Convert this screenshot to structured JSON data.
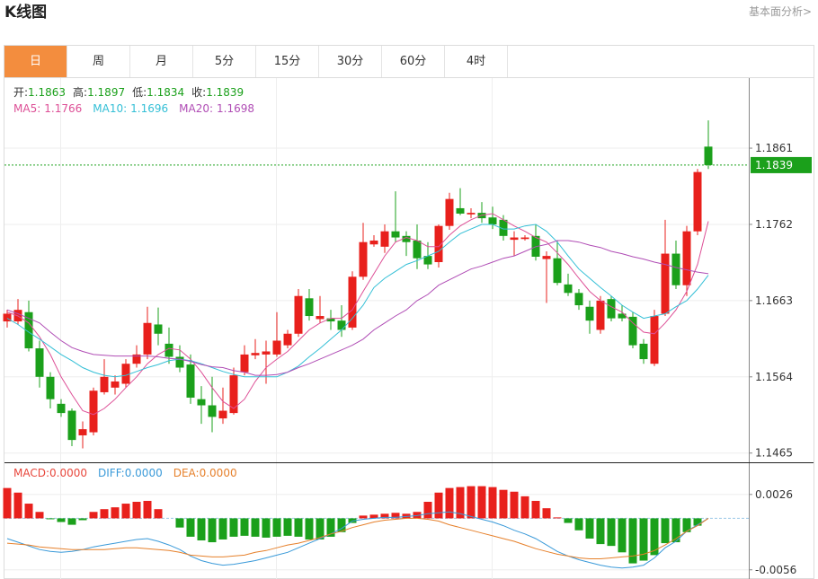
{
  "header": {
    "title": "K线图",
    "link": "基本面分析>"
  },
  "tabs": [
    "日",
    "周",
    "月",
    "5分",
    "15分",
    "30分",
    "60分",
    "4时"
  ],
  "active_tab": 0,
  "info": [
    {
      "label": "开:",
      "value": "1.1863"
    },
    {
      "label": "高:",
      "value": "1.1897"
    },
    {
      "label": "低:",
      "value": "1.1834"
    },
    {
      "label": "收:",
      "value": "1.1839"
    }
  ],
  "chart_data": [
    {
      "type": "candlestick",
      "up_color": "#e8201c",
      "down_color": "#1ba01b",
      "ylim": [
        1.1453,
        1.1952
      ],
      "yticks": [
        1.1465,
        1.1564,
        1.1663,
        1.1762,
        1.1861
      ],
      "grid": true,
      "last_price": 1.1839,
      "last_color": "#1ba01b",
      "open": [
        1.1636,
        1.1636,
        1.1648,
        1.1601,
        1.1564,
        1.1529,
        1.152,
        1.1488,
        1.1492,
        1.1544,
        1.155,
        1.1555,
        1.1581,
        1.1593,
        1.1632,
        1.1607,
        1.159,
        1.158,
        1.1535,
        1.1527,
        1.151,
        1.1517,
        1.157,
        1.1592,
        1.1593,
        1.1593,
        1.1605,
        1.162,
        1.1666,
        1.1639,
        1.164,
        1.1637,
        1.1628,
        1.1694,
        1.1736,
        1.1733,
        1.1753,
        1.1747,
        1.1741,
        1.1721,
        1.1713,
        1.176,
        1.1783,
        1.1775,
        1.1777,
        1.1771,
        1.1768,
        1.1742,
        1.1743,
        1.1747,
        1.1717,
        1.1718,
        1.1684,
        1.1673,
        1.1655,
        1.1625,
        1.1665,
        1.1646,
        1.1642,
        1.1607,
        1.1581,
        1.1646,
        1.1724,
        1.1683,
        1.1753,
        1.1863
      ],
      "high": [
        1.1651,
        1.1665,
        1.1663,
        1.1611,
        1.157,
        1.1535,
        1.1523,
        1.1506,
        1.155,
        1.1587,
        1.1566,
        1.1587,
        1.1605,
        1.1655,
        1.1654,
        1.1628,
        1.1605,
        1.1593,
        1.1552,
        1.1564,
        1.155,
        1.1576,
        1.1605,
        1.1613,
        1.1611,
        1.1648,
        1.1625,
        1.1678,
        1.1678,
        1.1669,
        1.1651,
        1.1657,
        1.1701,
        1.1764,
        1.1748,
        1.1762,
        1.1805,
        1.1753,
        1.1762,
        1.1739,
        1.1762,
        1.1803,
        1.1809,
        1.1783,
        1.1791,
        1.1785,
        1.1774,
        1.1753,
        1.1748,
        1.1762,
        1.1727,
        1.1741,
        1.1698,
        1.1678,
        1.1663,
        1.1669,
        1.1669,
        1.1657,
        1.1648,
        1.1613,
        1.1651,
        1.1768,
        1.1741,
        1.176,
        1.1834,
        1.1897
      ],
      "low": [
        1.1628,
        1.1632,
        1.1597,
        1.155,
        1.1523,
        1.1512,
        1.1474,
        1.1471,
        1.1488,
        1.1541,
        1.1541,
        1.155,
        1.1576,
        1.1587,
        1.1605,
        1.1581,
        1.157,
        1.1529,
        1.1503,
        1.1492,
        1.1503,
        1.1515,
        1.1566,
        1.1587,
        1.1555,
        1.159,
        1.1601,
        1.1616,
        1.1637,
        1.1634,
        1.1625,
        1.1616,
        1.1625,
        1.169,
        1.1733,
        1.1725,
        1.1739,
        1.1721,
        1.1704,
        1.1704,
        1.1706,
        1.1755,
        1.1774,
        1.177,
        1.1764,
        1.1756,
        1.1741,
        1.1721,
        1.1741,
        1.1715,
        1.166,
        1.1683,
        1.1669,
        1.1651,
        1.162,
        1.162,
        1.1636,
        1.1636,
        1.1601,
        1.1581,
        1.1578,
        1.1643,
        1.1678,
        1.1669,
        1.1748,
        1.1834
      ],
      "close": [
        1.1646,
        1.1651,
        1.1601,
        1.1564,
        1.1535,
        1.1517,
        1.1482,
        1.1496,
        1.1546,
        1.1564,
        1.1558,
        1.1581,
        1.1593,
        1.1634,
        1.162,
        1.159,
        1.1576,
        1.1537,
        1.1527,
        1.1512,
        1.152,
        1.1566,
        1.1593,
        1.1595,
        1.1597,
        1.1611,
        1.162,
        1.1669,
        1.1643,
        1.1643,
        1.1636,
        1.1625,
        1.1694,
        1.1739,
        1.1741,
        1.1753,
        1.1745,
        1.1739,
        1.1718,
        1.171,
        1.176,
        1.1795,
        1.1776,
        1.1777,
        1.177,
        1.1762,
        1.1747,
        1.1745,
        1.1745,
        1.172,
        1.1721,
        1.1686,
        1.1673,
        1.1657,
        1.1637,
        1.1663,
        1.164,
        1.164,
        1.1605,
        1.1587,
        1.1643,
        1.1724,
        1.1683,
        1.1753,
        1.183,
        1.1839
      ],
      "series": [
        {
          "name": "MA5:",
          "current": "1.1766",
          "color": "#dd4f96",
          "values": [
            1.1648,
            1.1643,
            1.1634,
            1.1616,
            1.1593,
            1.1564,
            1.1541,
            1.152,
            1.1515,
            1.1523,
            1.1535,
            1.155,
            1.1564,
            1.1581,
            1.1593,
            1.1601,
            1.1599,
            1.1587,
            1.157,
            1.155,
            1.1532,
            1.1523,
            1.1535,
            1.1558,
            1.1576,
            1.1587,
            1.1597,
            1.1611,
            1.1625,
            1.1634,
            1.164,
            1.164,
            1.1651,
            1.1675,
            1.1698,
            1.1721,
            1.1739,
            1.1745,
            1.1741,
            1.1733,
            1.1733,
            1.1748,
            1.176,
            1.1768,
            1.1774,
            1.1776,
            1.1768,
            1.176,
            1.1753,
            1.1745,
            1.1739,
            1.1725,
            1.171,
            1.1692,
            1.1675,
            1.1663,
            1.1655,
            1.1648,
            1.1634,
            1.1622,
            1.162,
            1.1634,
            1.1651,
            1.1675,
            1.171,
            1.1766
          ]
        },
        {
          "name": "MA10:",
          "current": "1.1696",
          "color": "#33bfd6",
          "values": [
            1.164,
            1.1632,
            1.1622,
            1.1613,
            1.1603,
            1.1593,
            1.1585,
            1.1576,
            1.157,
            1.1566,
            1.1564,
            1.1566,
            1.1571,
            1.1576,
            1.158,
            1.1585,
            1.1587,
            1.1585,
            1.1581,
            1.1576,
            1.1571,
            1.1567,
            1.1564,
            1.1564,
            1.1564,
            1.1564,
            1.157,
            1.1578,
            1.159,
            1.1601,
            1.1613,
            1.1625,
            1.164,
            1.1657,
            1.168,
            1.1692,
            1.1701,
            1.171,
            1.1715,
            1.1721,
            1.1727,
            1.1739,
            1.175,
            1.1756,
            1.1762,
            1.1762,
            1.1756,
            1.1756,
            1.176,
            1.1762,
            1.1753,
            1.1739,
            1.1721,
            1.1704,
            1.1692,
            1.168,
            1.1669,
            1.1657,
            1.1648,
            1.164,
            1.1643,
            1.1646,
            1.1655,
            1.1663,
            1.1678,
            1.1696
          ]
        },
        {
          "name": "MA20:",
          "current": "1.1698",
          "color": "#b04db5",
          "values": [
            1.1651,
            1.1646,
            1.164,
            1.1634,
            1.1622,
            1.1611,
            1.1602,
            1.1597,
            1.1593,
            1.1592,
            1.1591,
            1.1591,
            1.1591,
            1.1591,
            1.159,
            1.1588,
            1.1587,
            1.1584,
            1.158,
            1.1577,
            1.1576,
            1.1572,
            1.157,
            1.1566,
            1.1566,
            1.1567,
            1.157,
            1.1576,
            1.1581,
            1.1587,
            1.1593,
            1.1599,
            1.1605,
            1.1613,
            1.1625,
            1.1634,
            1.1643,
            1.1651,
            1.1663,
            1.1671,
            1.1683,
            1.169,
            1.1697,
            1.1704,
            1.1708,
            1.1713,
            1.1718,
            1.1721,
            1.1727,
            1.1733,
            1.1736,
            1.1741,
            1.1741,
            1.1739,
            1.1735,
            1.1732,
            1.1727,
            1.1724,
            1.172,
            1.1717,
            1.1713,
            1.171,
            1.1706,
            1.1703,
            1.17,
            1.1698
          ]
        }
      ]
    },
    {
      "type": "macd",
      "ylim": [
        -0.0066,
        0.006
      ],
      "yticks": [
        -0.0056,
        0.0026
      ],
      "up_color": "#e8201c",
      "down_color": "#1ba01b",
      "histogram": {
        "name": "MACD:",
        "current": "0.0000",
        "color": "#e8473c",
        "values": [
          0.0033,
          0.0028,
          0.0016,
          0.0007,
          -0.0001,
          -0.0004,
          -0.0007,
          -0.0002,
          0.0007,
          0.001,
          0.0012,
          0.0016,
          0.0018,
          0.0019,
          0.001,
          0,
          -0.001,
          -0.002,
          -0.0024,
          -0.0026,
          -0.0023,
          -0.002,
          -0.0019,
          -0.002,
          -0.0021,
          -0.002,
          -0.0019,
          -0.002,
          -0.0023,
          -0.0023,
          -0.002,
          -0.0015,
          -0.0005,
          0.0003,
          0.0004,
          0.0005,
          0.0006,
          0.0005,
          0.0007,
          0.0018,
          0.0028,
          0.0033,
          0.0034,
          0.0035,
          0.0035,
          0.0034,
          0.0031,
          0.0029,
          0.0024,
          0.0019,
          0.0011,
          0.0001,
          -0.0005,
          -0.0013,
          -0.0022,
          -0.0028,
          -0.003,
          -0.0037,
          -0.0049,
          -0.0046,
          -0.004,
          -0.0027,
          -0.0026,
          -0.0015,
          -0.0008,
          0
        ]
      },
      "series": [
        {
          "name": "DIFF:",
          "current": "0.0000",
          "color": "#3a9ad9",
          "values": [
            -0.0022,
            -0.0026,
            -0.003,
            -0.0034,
            -0.0036,
            -0.0037,
            -0.0036,
            -0.0034,
            -0.0031,
            -0.0029,
            -0.0027,
            -0.0025,
            -0.0023,
            -0.0022,
            -0.0025,
            -0.0029,
            -0.0034,
            -0.0041,
            -0.0046,
            -0.0049,
            -0.0051,
            -0.005,
            -0.0048,
            -0.0046,
            -0.0043,
            -0.004,
            -0.0037,
            -0.0032,
            -0.0027,
            -0.0022,
            -0.0017,
            -0.0011,
            -0.0003,
            -0.0001,
            0,
            0.0001,
            0.0001,
            0.0002,
            0.0003,
            0.0005,
            0.0006,
            0.0007,
            0.0005,
            0.0002,
            -0.0001,
            -0.0004,
            -0.0008,
            -0.0013,
            -0.0017,
            -0.0022,
            -0.0029,
            -0.0036,
            -0.0041,
            -0.0045,
            -0.0048,
            -0.0051,
            -0.0053,
            -0.0054,
            -0.0053,
            -0.0051,
            -0.0043,
            -0.0032,
            -0.0025,
            -0.0014,
            -0.0007,
            0
          ]
        },
        {
          "name": "DEA:",
          "current": "0.0000",
          "color": "#e6802b",
          "values": [
            -0.0027,
            -0.0028,
            -0.0029,
            -0.0031,
            -0.0032,
            -0.0033,
            -0.0034,
            -0.0034,
            -0.0034,
            -0.0034,
            -0.0033,
            -0.0032,
            -0.0032,
            -0.0033,
            -0.0034,
            -0.0035,
            -0.0037,
            -0.004,
            -0.0041,
            -0.0042,
            -0.0042,
            -0.0041,
            -0.004,
            -0.0037,
            -0.0035,
            -0.0032,
            -0.0029,
            -0.0027,
            -0.0024,
            -0.0021,
            -0.0017,
            -0.0014,
            -0.001,
            -0.0007,
            -0.0004,
            -0.0002,
            -0.0001,
            0,
            0,
            -0.0001,
            -0.0003,
            -0.0007,
            -0.001,
            -0.0013,
            -0.0016,
            -0.0019,
            -0.0022,
            -0.0025,
            -0.0029,
            -0.0033,
            -0.0036,
            -0.0039,
            -0.0041,
            -0.0043,
            -0.0044,
            -0.0044,
            -0.0043,
            -0.0042,
            -0.0041,
            -0.0039,
            -0.0035,
            -0.0029,
            -0.0022,
            -0.0014,
            -0.0008,
            0
          ]
        }
      ]
    }
  ]
}
